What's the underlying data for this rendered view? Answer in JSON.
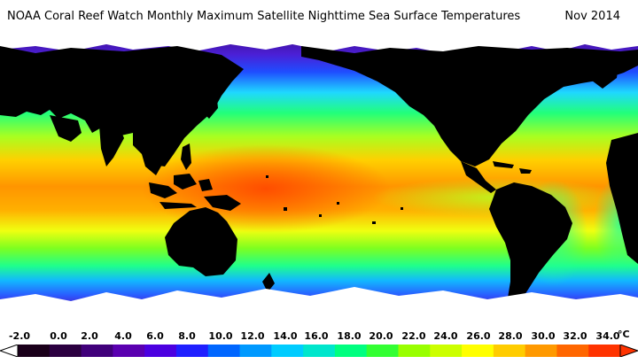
{
  "header": {
    "title": "NOAA Coral Reef Watch Monthly Maximum Satellite Nighttime Sea Surface Temperatures",
    "date": "Nov 2014"
  },
  "legend": {
    "labels": [
      "-2.0",
      "0.0",
      "2.0",
      "4.0",
      "6.0",
      "8.0",
      "10.0",
      "12.0",
      "14.0",
      "16.0",
      "18.0",
      "20.0",
      "22.0",
      "24.0",
      "26.0",
      "28.0",
      "30.0",
      "32.0",
      "34.0"
    ],
    "unit": "°C",
    "colors": [
      "#1a001a",
      "#2b0040",
      "#40007a",
      "#5a00b0",
      "#4b00e0",
      "#1f1fff",
      "#0066ff",
      "#0099ff",
      "#00ccff",
      "#00e6cc",
      "#00ff80",
      "#33ff33",
      "#99ff00",
      "#ccff00",
      "#ffff00",
      "#ffcc00",
      "#ff9900",
      "#ff6600",
      "#ff3300"
    ]
  },
  "colors": {
    "land": "#000000",
    "ice": "#ffffff",
    "polar_sea": "#3d0a8a",
    "cold_sea": "#1f4dff",
    "temperate_sea": "#1fd8ff",
    "mild_sea": "#22ff7a",
    "warm_sea": "#a9ff20",
    "hot_sea": "#ffd000",
    "tropical_sea": "#ff9500",
    "very_hot_sea": "#ff5a00"
  }
}
